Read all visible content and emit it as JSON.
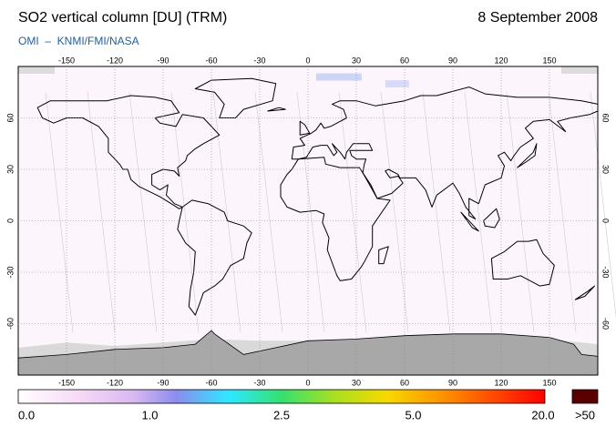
{
  "header": {
    "title": "SO2 vertical column [DU] (TRM)",
    "date": "8 September 2008",
    "source": "OMI  –  KNMI/FMI/NASA"
  },
  "map": {
    "lon_ticks": [
      -150,
      -120,
      -90,
      -60,
      -30,
      0,
      30,
      60,
      90,
      120,
      150
    ],
    "lat_ticks": [
      60,
      30,
      0,
      -30,
      -60
    ]
  },
  "colorbar": {
    "labels": [
      "0.0",
      "1.0",
      "2.5",
      "5.0",
      "20.0"
    ],
    "overflow": ">50"
  }
}
